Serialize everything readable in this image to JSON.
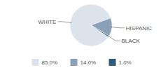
{
  "chart_data": {
    "type": "pie",
    "categories": [
      "WHITE",
      "HISPANIC",
      "BLACK"
    ],
    "values": [
      85,
      14,
      1
    ],
    "value_labels": [
      "85.0%",
      "14.0%",
      "1.0%"
    ],
    "colors": [
      "#dde3ea",
      "#8aa0b6",
      "#2f5a7c"
    ],
    "legend": "bottom"
  }
}
